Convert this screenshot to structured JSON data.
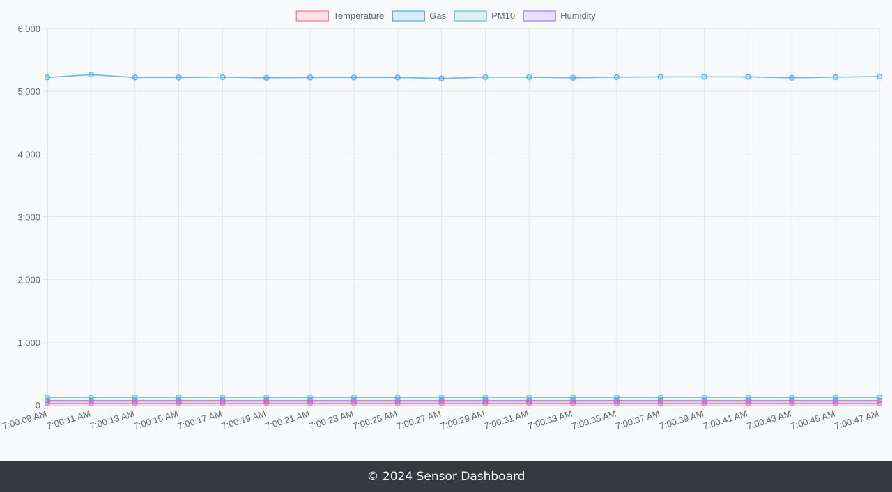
{
  "chart_data": {
    "type": "line",
    "categories": [
      "7:00:09 AM",
      "7:00:11 AM",
      "7:00:13 AM",
      "7:00:15 AM",
      "7:00:17 AM",
      "7:00:19 AM",
      "7:00:21 AM",
      "7:00:23 AM",
      "7:00:25 AM",
      "7:00:27 AM",
      "7:00:29 AM",
      "7:00:31 AM",
      "7:00:33 AM",
      "7:00:35 AM",
      "7:00:37 AM",
      "7:00:39 AM",
      "7:00:41 AM",
      "7:00:43 AM",
      "7:00:45 AM",
      "7:00:47 AM"
    ],
    "series": [
      {
        "name": "Temperature",
        "color": "#ff6384",
        "values": [
          28,
          28,
          28,
          28,
          28,
          28,
          28,
          28,
          28,
          28,
          28,
          28,
          28,
          28,
          28,
          28,
          28,
          28,
          28,
          28
        ]
      },
      {
        "name": "Gas",
        "color": "#36a2eb",
        "values": [
          5220,
          5265,
          5220,
          5220,
          5225,
          5215,
          5220,
          5220,
          5220,
          5205,
          5225,
          5225,
          5215,
          5225,
          5230,
          5230,
          5230,
          5215,
          5225,
          5235
        ]
      },
      {
        "name": "PM10",
        "color": "#4bc0c0",
        "values": [
          120,
          120,
          120,
          120,
          120,
          120,
          120,
          120,
          120,
          120,
          120,
          120,
          120,
          120,
          120,
          120,
          120,
          120,
          120,
          120
        ]
      },
      {
        "name": "Humidity",
        "color": "#9966ff",
        "values": [
          70,
          70,
          70,
          70,
          70,
          70,
          70,
          70,
          70,
          70,
          70,
          70,
          70,
          70,
          70,
          70,
          70,
          70,
          70,
          70
        ]
      }
    ],
    "ylim": [
      0,
      6000
    ],
    "yticks": [
      0,
      1000,
      2000,
      3000,
      4000,
      5000,
      6000
    ],
    "ytick_labels": [
      "0",
      "1,000",
      "2,000",
      "3,000",
      "4,000",
      "5,000",
      "6,000"
    ],
    "grid": true,
    "legend_position": "top-center"
  },
  "footer": {
    "text": "© 2024 Sensor Dashboard"
  }
}
